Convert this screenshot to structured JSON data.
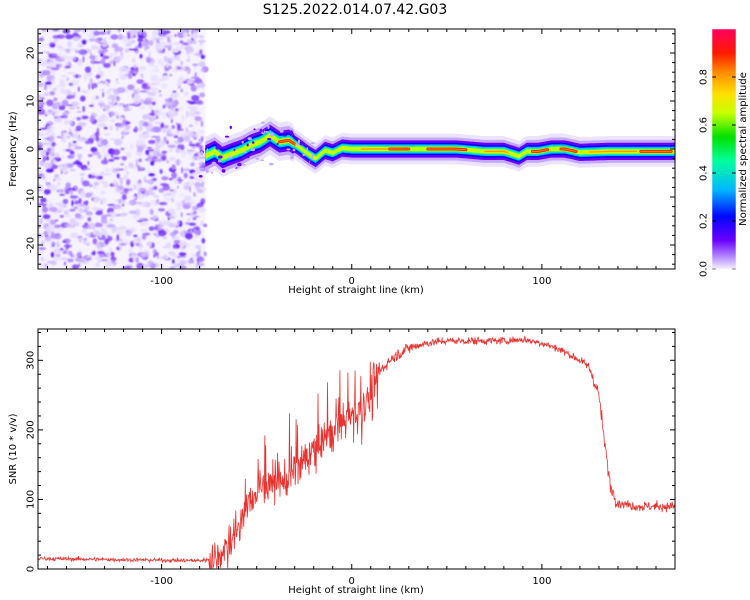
{
  "title": "S125.2022.014.07.42.G03",
  "colors": {
    "snr_line": "#e8322f",
    "colormap": [
      "#f4f0ff",
      "#b58cff",
      "#6a00ff",
      "#0008ff",
      "#00b7ff",
      "#00ff9c",
      "#00e000",
      "#c8ff00",
      "#ffe000",
      "#ff8a00",
      "#ff1a00",
      "#ff0060"
    ]
  },
  "chart_data": [
    {
      "id": "spectrogram",
      "type": "heatmap",
      "xlabel": "Height of straight line (km)",
      "ylabel": "Frequency (Hz)",
      "xlim": [
        -165,
        170
      ],
      "ylim": [
        -25,
        25
      ],
      "xticks": [
        -100,
        0,
        100
      ],
      "yticks": [
        -20,
        -10,
        0,
        10,
        20
      ],
      "colorbar": {
        "label": "Normalized spectral amplitude",
        "range": [
          0,
          1
        ],
        "ticks": [
          "0.0",
          "0.2",
          "0.4",
          "0.6",
          "0.8"
        ],
        "tick_values": [
          0.0,
          0.2,
          0.4,
          0.6,
          0.8
        ]
      },
      "noise_region_x": [
        -165,
        -77
      ],
      "ridge": {
        "x": [
          -77,
          -72,
          -68,
          -63,
          -58,
          -53,
          -48,
          -43,
          -38,
          -33,
          -28,
          -23,
          -19,
          -14,
          -10,
          -5,
          0,
          10,
          25,
          40,
          55,
          70,
          80,
          88,
          92,
          98,
          105,
          112,
          120,
          135,
          150,
          170
        ],
        "frequency": [
          -1.5,
          -0.5,
          -1.8,
          -1.0,
          -0.3,
          0.8,
          1.5,
          2.8,
          1.5,
          1.8,
          0.5,
          -1.0,
          -2.0,
          -0.3,
          -0.8,
          0.2,
          0.0,
          0.0,
          0.0,
          0.0,
          0.0,
          -0.5,
          -0.5,
          -1.5,
          -0.5,
          -0.5,
          0.0,
          0.0,
          -0.7,
          -0.5,
          -0.5,
          -0.5
        ]
      }
    },
    {
      "id": "snr",
      "type": "line",
      "xlabel": "Height of straight line (km)",
      "ylabel": "SNR (10 * v/v)",
      "xlim": [
        -165,
        170
      ],
      "ylim": [
        0,
        345
      ],
      "xticks": [
        -100,
        0,
        100
      ],
      "yticks": [
        0,
        100,
        200,
        300
      ],
      "envelope": {
        "x": [
          -165,
          -80,
          -72,
          -65,
          -60,
          -55,
          -50,
          -45,
          -40,
          -35,
          -30,
          -25,
          -20,
          -15,
          -10,
          -5,
          0,
          5,
          10,
          15,
          20,
          25,
          30,
          40,
          50,
          60,
          70,
          80,
          90,
          100,
          110,
          120,
          125,
          130,
          133,
          136,
          140,
          150,
          170
        ],
        "snr": [
          15,
          12,
          15,
          30,
          55,
          90,
          110,
          120,
          130,
          125,
          135,
          155,
          175,
          185,
          195,
          210,
          220,
          225,
          250,
          285,
          300,
          310,
          318,
          325,
          328,
          328,
          328,
          328,
          330,
          325,
          315,
          300,
          290,
          250,
          180,
          120,
          95,
          90,
          90
        ]
      }
    }
  ]
}
